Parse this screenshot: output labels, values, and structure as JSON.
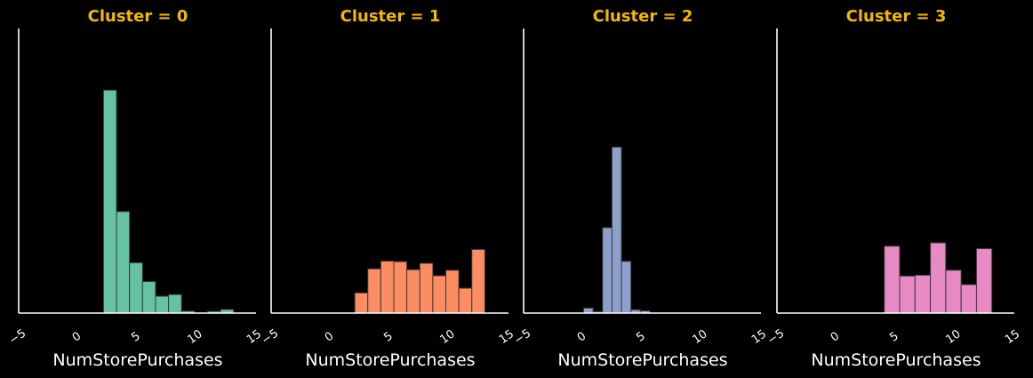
{
  "chart_data": [
    {
      "type": "bar",
      "title": "Cluster = 0",
      "xlabel": "NumStorePurchases",
      "ylabel": "",
      "xlim": [
        -5,
        15
      ],
      "xticks": [
        -5,
        0,
        5,
        10,
        15
      ],
      "ylim": [
        0,
        1
      ],
      "bin_edges": [
        2.1,
        3.2,
        4.3,
        5.4,
        6.5,
        7.6,
        8.7,
        9.8,
        10.9,
        12.0,
        13.1
      ],
      "values": [
        0.806,
        0.367,
        0.182,
        0.114,
        0.061,
        0.067,
        0.007,
        0.0,
        0.006,
        0.013
      ],
      "color": "#66c2a5"
    },
    {
      "type": "bar",
      "title": "Cluster = 1",
      "xlabel": "NumStorePurchases",
      "ylabel": "",
      "xlim": [
        -5,
        15
      ],
      "xticks": [
        -5,
        0,
        5,
        10,
        15
      ],
      "ylim": [
        0,
        1
      ],
      "bin_edges": [
        2.0,
        3.1,
        4.2,
        5.3,
        6.4,
        7.5,
        8.6,
        9.7,
        10.8,
        11.9,
        13.0
      ],
      "values": [
        0.073,
        0.16,
        0.188,
        0.186,
        0.157,
        0.18,
        0.135,
        0.155,
        0.09,
        0.23
      ],
      "color": "#fc8d62"
    },
    {
      "type": "bar",
      "title": "Cluster = 2",
      "xlabel": "NumStorePurchases",
      "ylabel": "",
      "xlim": [
        -5,
        15
      ],
      "xticks": [
        -5,
        0,
        5,
        10,
        15
      ],
      "ylim": [
        0,
        1
      ],
      "bin_edges": [
        0.0,
        0.8,
        1.6,
        2.4,
        3.2,
        4.0,
        4.8,
        5.6,
        6.4
      ],
      "values": [
        0.018,
        0.005,
        0.309,
        0.6,
        0.187,
        0.012,
        0.008,
        0.0
      ],
      "color": "#8da0cb"
    },
    {
      "type": "bar",
      "title": "Cluster = 3",
      "xlabel": "NumStorePurchases",
      "ylabel": "",
      "xlim": [
        -5,
        15
      ],
      "xticks": [
        -5,
        0,
        5,
        10,
        15
      ],
      "ylim": [
        0,
        1
      ],
      "bin_edges": [
        4.0,
        5.3,
        6.6,
        7.9,
        9.2,
        10.5,
        11.8,
        13.1
      ],
      "values": [
        0.242,
        0.134,
        0.137,
        0.254,
        0.155,
        0.103,
        0.233
      ],
      "color": "#e78ac3"
    }
  ],
  "style": {
    "background": "#000000",
    "title_color": "#f5b800",
    "axis_color": "#ffffff",
    "tick_label_color": "#ffffff",
    "bar_edge_color": "#3a3a3a"
  }
}
